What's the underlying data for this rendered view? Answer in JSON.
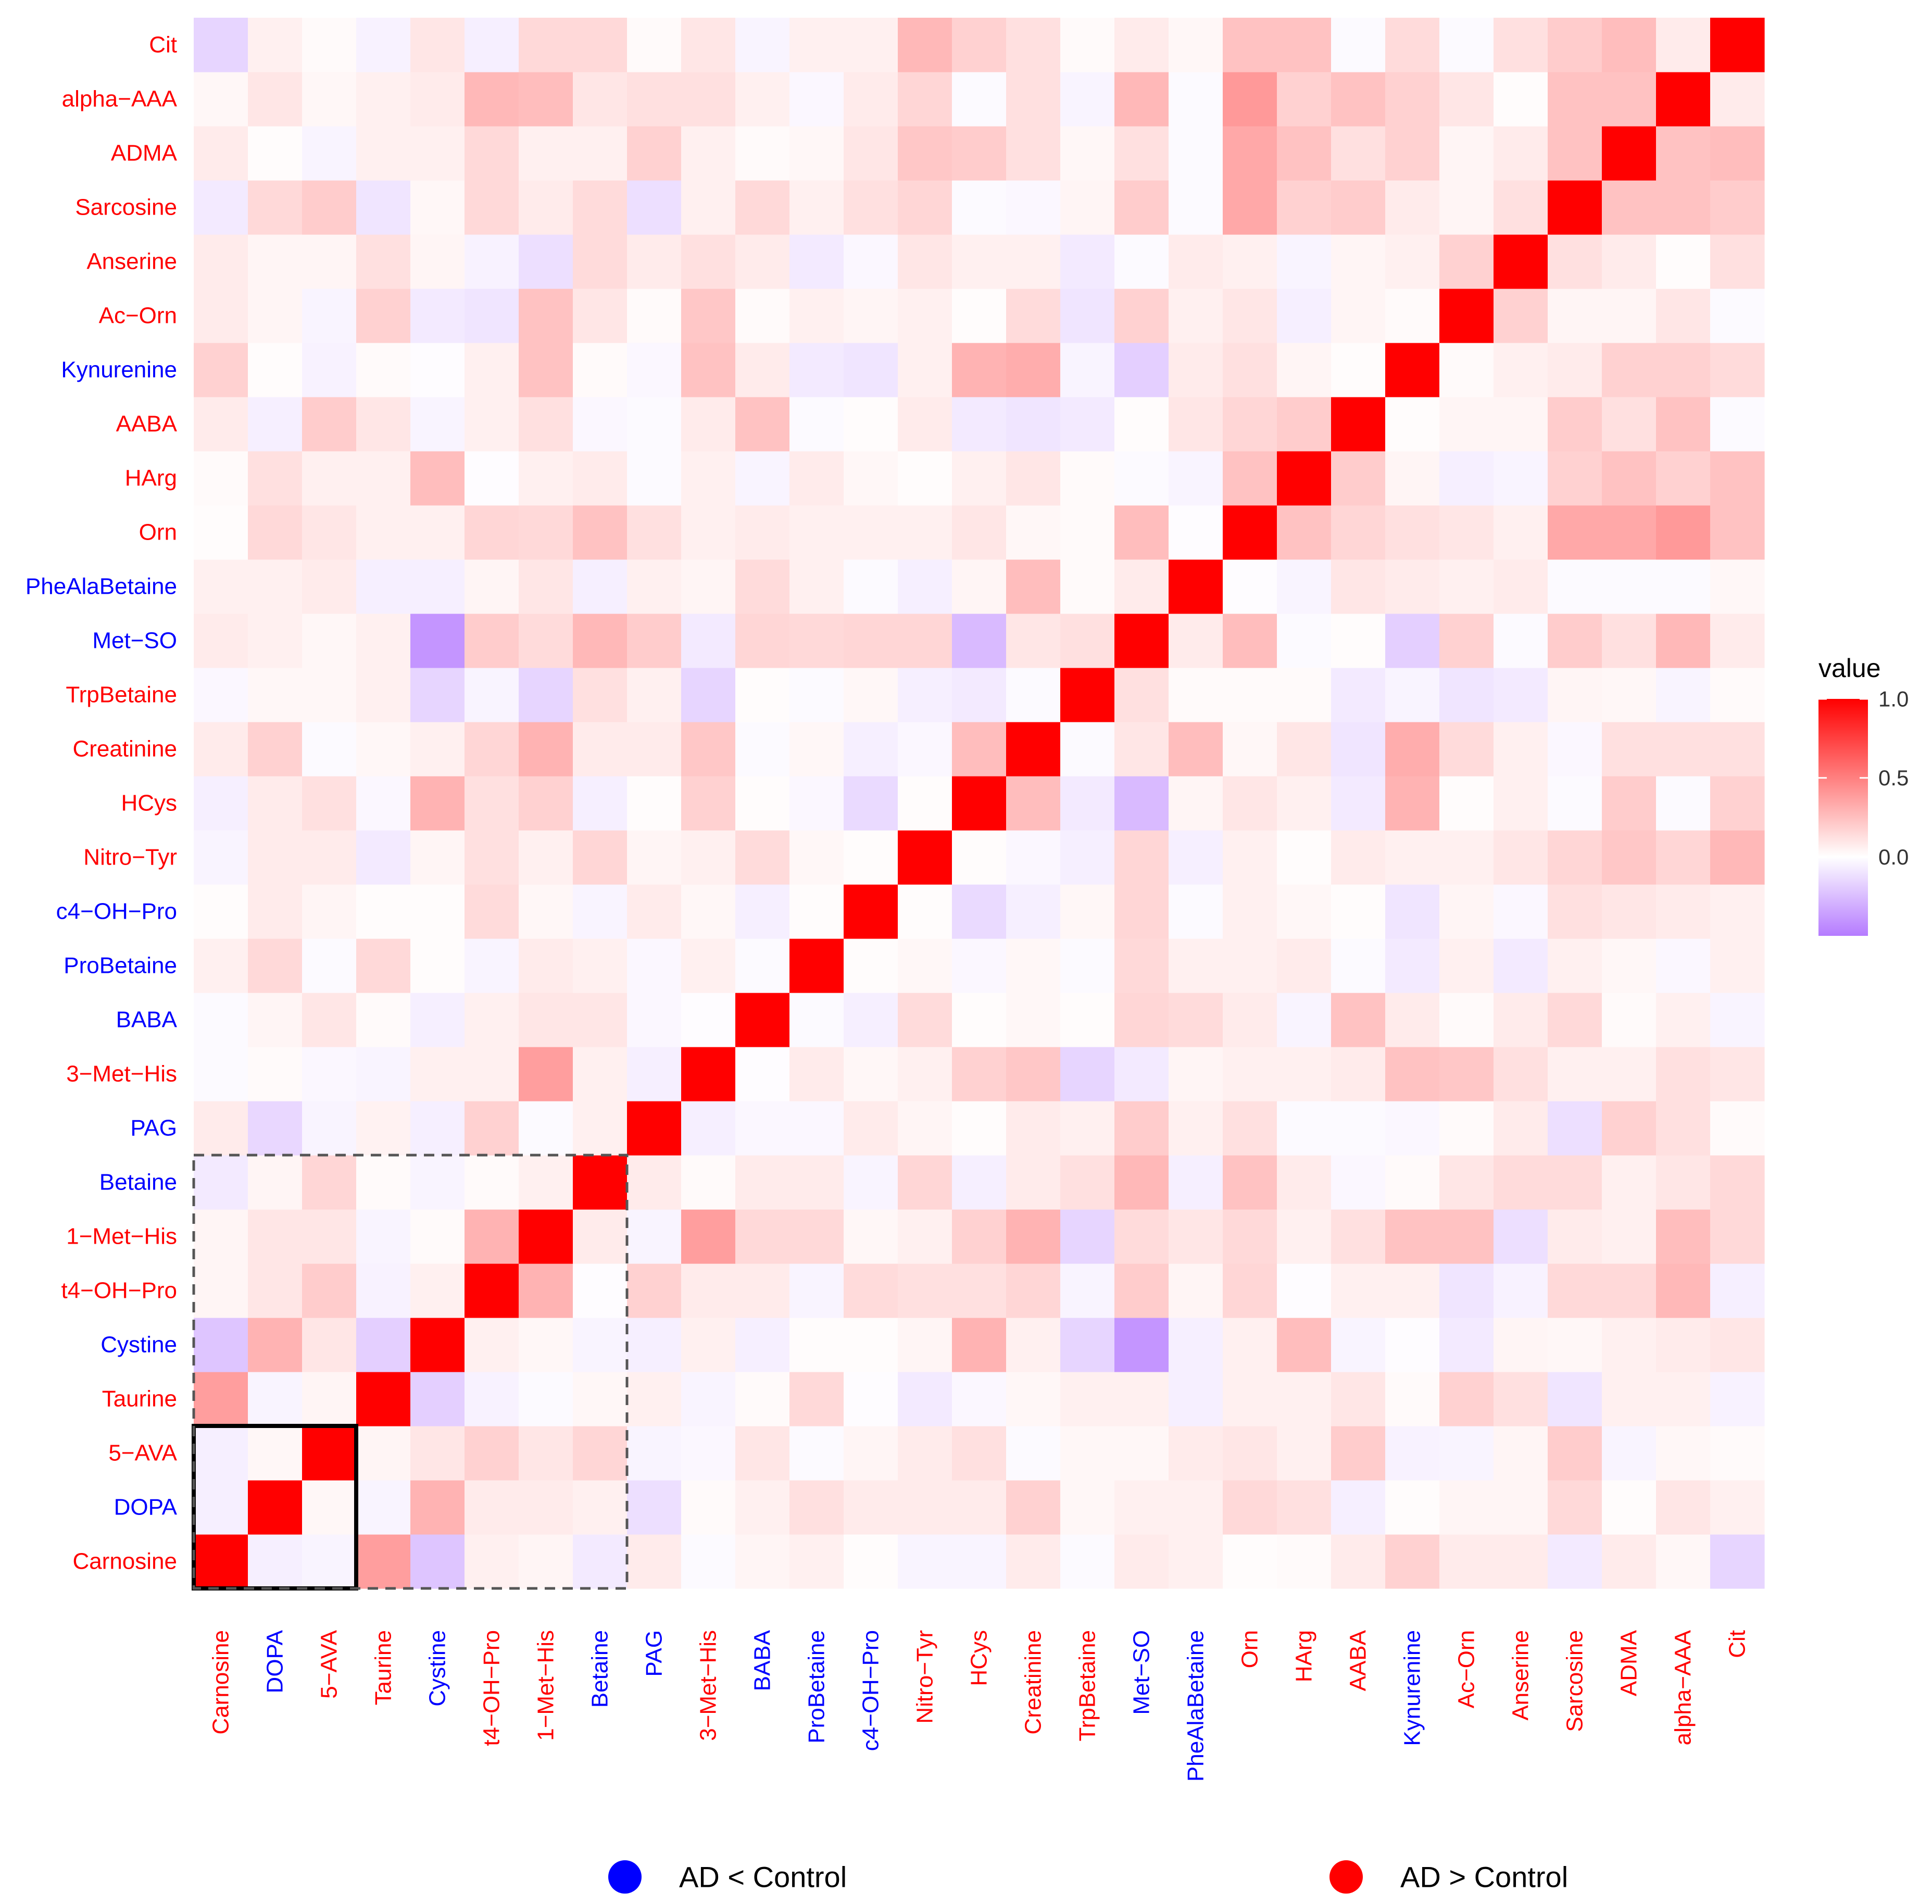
{
  "chart_data": {
    "type": "heatmap",
    "variables": [
      "Carnosine",
      "DOPA",
      "5−AVA",
      "Taurine",
      "Cystine",
      "t4−OH−Pro",
      "1−Met−His",
      "Betaine",
      "PAG",
      "3−Met−His",
      "BABA",
      "ProBetaine",
      "c4−OH−Pro",
      "Nitro−Tyr",
      "HCys",
      "Creatinine",
      "TrpBetaine",
      "Met−SO",
      "PheAlaBetaine",
      "Orn",
      "HArg",
      "AABA",
      "Kynurenine",
      "Ac−Orn",
      "Anserine",
      "Sarcosine",
      "ADMA",
      "alpha−AAA",
      "Cit"
    ],
    "variable_groups": [
      "up",
      "down",
      "up",
      "up",
      "down",
      "up",
      "up",
      "down",
      "down",
      "up",
      "down",
      "down",
      "down",
      "up",
      "up",
      "up",
      "up",
      "down",
      "down",
      "up",
      "up",
      "up",
      "down",
      "up",
      "up",
      "up",
      "up",
      "up",
      "up"
    ],
    "matrix": [
      [
        1.0,
        -0.06,
        -0.04,
        0.38,
        -0.22,
        0.06,
        0.04,
        -0.08,
        0.08,
        -0.02,
        0.04,
        0.06,
        0.01,
        -0.04,
        -0.04,
        0.08,
        -0.02,
        0.08,
        0.06,
        0.01,
        0.02,
        0.08,
        0.18,
        0.08,
        0.08,
        -0.08,
        0.08,
        0.03,
        -0.16
      ],
      [
        -0.06,
        1.0,
        0.03,
        -0.04,
        0.3,
        0.08,
        0.08,
        0.06,
        -0.12,
        0.02,
        0.06,
        0.12,
        0.08,
        0.08,
        0.08,
        0.18,
        0.03,
        0.06,
        0.06,
        0.15,
        0.12,
        -0.06,
        0.01,
        0.04,
        0.04,
        0.15,
        0.01,
        0.1,
        0.06
      ],
      [
        -0.06,
        0.03,
        1.0,
        0.04,
        0.1,
        0.18,
        0.1,
        0.16,
        -0.04,
        -0.03,
        0.1,
        -0.02,
        0.04,
        0.08,
        0.12,
        -0.02,
        0.03,
        0.03,
        0.08,
        0.1,
        0.06,
        0.2,
        -0.05,
        -0.04,
        0.04,
        0.2,
        -0.04,
        0.03,
        0.02
      ],
      [
        0.38,
        -0.04,
        0.04,
        1.0,
        -0.18,
        -0.05,
        -0.02,
        0.03,
        0.06,
        -0.04,
        0.02,
        0.15,
        -0.01,
        -0.08,
        -0.03,
        0.03,
        0.06,
        0.06,
        -0.06,
        0.06,
        0.06,
        0.1,
        0.02,
        0.18,
        0.12,
        -0.1,
        0.06,
        0.06,
        -0.05
      ],
      [
        -0.22,
        0.3,
        0.1,
        -0.18,
        1.0,
        0.06,
        0.03,
        -0.04,
        -0.06,
        0.06,
        -0.06,
        0.01,
        0.01,
        0.04,
        0.3,
        0.06,
        -0.16,
        -0.4,
        -0.06,
        0.06,
        0.26,
        -0.04,
        -0.01,
        -0.08,
        0.04,
        0.03,
        0.06,
        0.08,
        0.1
      ],
      [
        0.04,
        0.1,
        0.2,
        -0.05,
        0.06,
        1.0,
        0.3,
        -0.01,
        0.18,
        0.08,
        0.08,
        -0.04,
        0.14,
        0.12,
        0.12,
        0.16,
        -0.04,
        0.2,
        0.04,
        0.16,
        -0.01,
        0.06,
        0.06,
        -0.1,
        -0.05,
        0.15,
        0.15,
        0.28,
        -0.06
      ],
      [
        0.04,
        0.1,
        0.1,
        -0.04,
        0.02,
        0.3,
        1.0,
        0.08,
        -0.04,
        0.38,
        0.15,
        0.15,
        0.03,
        0.06,
        0.18,
        0.3,
        -0.16,
        0.14,
        0.1,
        0.15,
        0.06,
        0.12,
        0.24,
        0.24,
        -0.12,
        0.08,
        0.06,
        0.26,
        0.15
      ],
      [
        -0.08,
        0.04,
        0.16,
        0.02,
        -0.04,
        0.02,
        0.06,
        1.0,
        0.08,
        0.02,
        0.08,
        0.08,
        -0.04,
        0.16,
        -0.06,
        0.08,
        0.12,
        0.28,
        -0.06,
        0.24,
        0.08,
        -0.03,
        0.02,
        0.1,
        0.14,
        0.14,
        0.06,
        0.1,
        0.15
      ],
      [
        0.08,
        -0.15,
        -0.04,
        0.05,
        -0.06,
        0.18,
        -0.02,
        0.06,
        1.0,
        -0.06,
        -0.03,
        -0.03,
        0.08,
        0.04,
        0.01,
        0.08,
        0.06,
        0.2,
        0.06,
        0.12,
        -0.02,
        -0.02,
        -0.03,
        0.02,
        0.08,
        -0.12,
        0.18,
        0.12,
        0.02
      ],
      [
        -0.02,
        0.02,
        -0.03,
        -0.04,
        0.06,
        0.06,
        0.38,
        0.06,
        -0.06,
        1.0,
        -0.01,
        0.08,
        0.03,
        0.06,
        0.18,
        0.22,
        -0.16,
        -0.08,
        0.04,
        0.06,
        0.06,
        0.08,
        0.24,
        0.22,
        0.12,
        0.06,
        0.06,
        0.12,
        0.1
      ],
      [
        -0.02,
        0.04,
        0.1,
        0.02,
        -0.06,
        0.06,
        0.1,
        0.1,
        -0.03,
        -0.01,
        1.0,
        -0.02,
        -0.06,
        0.14,
        0.01,
        0.03,
        0.01,
        0.16,
        0.14,
        0.08,
        -0.04,
        0.24,
        0.08,
        0.02,
        0.08,
        0.15,
        0.02,
        0.06,
        -0.04
      ],
      [
        0.06,
        0.15,
        -0.02,
        0.15,
        0.01,
        -0.04,
        0.08,
        0.06,
        -0.03,
        0.06,
        -0.02,
        1.0,
        0.01,
        0.03,
        -0.03,
        0.03,
        -0.02,
        0.15,
        0.06,
        0.06,
        0.08,
        -0.02,
        -0.08,
        0.06,
        -0.08,
        0.06,
        0.03,
        -0.03,
        0.06
      ],
      [
        0.01,
        0.08,
        0.04,
        0.01,
        0.01,
        0.14,
        0.03,
        -0.04,
        0.08,
        0.03,
        -0.06,
        0.01,
        1.0,
        0.01,
        -0.14,
        -0.06,
        0.03,
        0.16,
        -0.02,
        0.06,
        0.03,
        0.01,
        -0.1,
        0.04,
        -0.03,
        0.12,
        0.1,
        0.08,
        0.06
      ],
      [
        -0.04,
        0.08,
        0.08,
        -0.08,
        0.04,
        0.12,
        0.06,
        0.16,
        0.04,
        0.06,
        0.14,
        0.03,
        0.01,
        1.0,
        0.01,
        -0.03,
        -0.06,
        0.16,
        -0.06,
        0.06,
        0.01,
        0.08,
        0.06,
        0.06,
        0.1,
        0.16,
        0.22,
        0.16,
        0.28
      ],
      [
        -0.06,
        0.08,
        0.12,
        -0.03,
        0.3,
        0.12,
        0.18,
        -0.06,
        0.01,
        0.18,
        0.01,
        -0.03,
        -0.14,
        0.01,
        1.0,
        0.26,
        -0.08,
        -0.26,
        0.04,
        0.1,
        0.06,
        -0.08,
        0.3,
        0.01,
        0.06,
        -0.02,
        0.2,
        -0.02,
        0.18
      ],
      [
        0.08,
        0.18,
        -0.02,
        0.03,
        0.06,
        0.16,
        0.3,
        0.08,
        0.08,
        0.22,
        -0.02,
        0.03,
        -0.06,
        -0.03,
        0.26,
        1.0,
        -0.02,
        0.1,
        0.26,
        0.03,
        0.1,
        -0.1,
        0.32,
        0.14,
        0.06,
        -0.03,
        0.12,
        0.12,
        0.12
      ],
      [
        -0.03,
        0.03,
        0.03,
        0.06,
        -0.16,
        -0.04,
        -0.16,
        0.12,
        0.06,
        -0.16,
        0.01,
        -0.02,
        0.03,
        -0.06,
        -0.08,
        -0.02,
        1.0,
        0.12,
        0.02,
        0.02,
        0.02,
        -0.08,
        -0.04,
        -0.1,
        -0.08,
        0.04,
        0.03,
        -0.04,
        0.02
      ],
      [
        0.08,
        0.06,
        0.03,
        0.06,
        -0.4,
        0.2,
        0.14,
        0.28,
        0.2,
        -0.08,
        0.16,
        0.15,
        0.16,
        0.16,
        -0.26,
        0.1,
        0.12,
        1.0,
        0.08,
        0.26,
        -0.02,
        0.01,
        -0.18,
        0.18,
        -0.02,
        0.2,
        0.12,
        0.28,
        0.08
      ],
      [
        0.06,
        0.06,
        0.08,
        -0.06,
        -0.06,
        0.04,
        0.1,
        -0.06,
        0.06,
        0.04,
        0.14,
        0.06,
        -0.02,
        -0.06,
        0.04,
        0.26,
        0.02,
        0.08,
        1.0,
        -0.01,
        -0.04,
        0.1,
        0.08,
        0.06,
        0.08,
        -0.02,
        -0.02,
        -0.02,
        0.03
      ],
      [
        0.01,
        0.15,
        0.1,
        0.06,
        0.06,
        0.16,
        0.15,
        0.24,
        0.12,
        0.06,
        0.08,
        0.06,
        0.06,
        0.06,
        0.1,
        0.03,
        0.02,
        0.26,
        -0.01,
        1.0,
        0.24,
        0.16,
        0.12,
        0.1,
        0.06,
        0.34,
        0.34,
        0.4,
        0.24
      ],
      [
        0.02,
        0.12,
        0.06,
        0.06,
        0.26,
        -0.01,
        0.06,
        0.08,
        -0.02,
        0.06,
        -0.04,
        0.08,
        0.03,
        0.01,
        0.06,
        0.1,
        0.02,
        -0.02,
        -0.04,
        0.24,
        1.0,
        0.2,
        0.04,
        -0.06,
        -0.04,
        0.18,
        0.24,
        0.18,
        0.24
      ],
      [
        0.08,
        -0.06,
        0.2,
        0.1,
        -0.04,
        0.06,
        0.12,
        -0.03,
        -0.02,
        0.08,
        0.24,
        -0.02,
        0.01,
        0.08,
        -0.08,
        -0.1,
        -0.08,
        0.01,
        0.1,
        0.16,
        0.2,
        1.0,
        0.01,
        0.04,
        0.04,
        0.2,
        0.12,
        0.24,
        -0.02
      ],
      [
        0.18,
        0.01,
        -0.05,
        0.02,
        -0.01,
        0.06,
        0.24,
        0.02,
        -0.03,
        0.24,
        0.08,
        -0.08,
        -0.1,
        0.06,
        0.3,
        0.32,
        -0.04,
        -0.18,
        0.08,
        0.12,
        0.04,
        0.01,
        1.0,
        0.02,
        0.06,
        0.08,
        0.18,
        0.18,
        0.14
      ],
      [
        0.08,
        0.04,
        -0.04,
        0.18,
        -0.08,
        -0.1,
        0.24,
        0.1,
        0.02,
        0.22,
        0.02,
        0.06,
        0.04,
        0.06,
        0.01,
        0.14,
        -0.1,
        0.18,
        0.06,
        0.1,
        -0.06,
        0.04,
        0.02,
        1.0,
        0.18,
        0.04,
        0.04,
        0.1,
        -0.02
      ],
      [
        0.08,
        0.04,
        0.04,
        0.12,
        0.04,
        -0.05,
        -0.12,
        0.14,
        0.08,
        0.12,
        0.08,
        -0.08,
        -0.03,
        0.1,
        0.06,
        0.06,
        -0.08,
        -0.02,
        0.08,
        0.06,
        -0.04,
        0.04,
        0.06,
        0.18,
        1.0,
        0.12,
        0.08,
        0.01,
        0.12
      ],
      [
        -0.08,
        0.15,
        0.2,
        -0.1,
        0.03,
        0.15,
        0.08,
        0.14,
        -0.12,
        0.06,
        0.15,
        0.06,
        0.12,
        0.16,
        -0.02,
        -0.03,
        0.04,
        0.2,
        -0.02,
        0.34,
        0.18,
        0.2,
        0.08,
        0.04,
        0.12,
        1.0,
        0.24,
        0.24,
        0.2
      ],
      [
        0.08,
        0.01,
        -0.04,
        0.06,
        0.06,
        0.15,
        0.06,
        0.06,
        0.18,
        0.06,
        0.02,
        0.03,
        0.1,
        0.22,
        0.2,
        0.12,
        0.03,
        0.12,
        -0.02,
        0.34,
        0.24,
        0.12,
        0.18,
        0.04,
        0.08,
        0.24,
        1.0,
        0.24,
        0.26
      ],
      [
        0.03,
        0.1,
        0.03,
        0.06,
        0.08,
        0.28,
        0.26,
        0.1,
        0.12,
        0.12,
        0.06,
        -0.03,
        0.08,
        0.16,
        -0.02,
        0.12,
        -0.04,
        0.28,
        -0.02,
        0.4,
        0.18,
        0.24,
        0.18,
        0.1,
        0.01,
        0.24,
        0.24,
        1.0,
        0.08
      ],
      [
        -0.16,
        0.06,
        0.02,
        -0.05,
        0.1,
        -0.06,
        0.15,
        0.15,
        0.02,
        0.1,
        -0.04,
        0.06,
        0.06,
        0.28,
        0.18,
        0.12,
        0.02,
        0.08,
        0.03,
        0.24,
        0.24,
        -0.02,
        0.14,
        -0.02,
        0.12,
        0.2,
        0.26,
        0.08,
        1.0
      ]
    ],
    "legend_title": "value",
    "color_scale": {
      "min": -0.5,
      "mid": 0.0,
      "max": 1.0,
      "low_color": "#b57bff",
      "mid_color": "#ffffff",
      "high_color": "#ff0000"
    },
    "legend_ticks": [
      "1.0",
      "0.5",
      "0.0"
    ],
    "legend_tick_values": [
      1.0,
      0.5,
      0.0
    ],
    "highlight_boxes": [
      {
        "style": "solid",
        "from": "Carnosine",
        "to": "5−AVA"
      },
      {
        "style": "dashed",
        "from": "Carnosine",
        "to": "Betaine"
      }
    ],
    "group_key": [
      {
        "group": "down",
        "label": "AD < Control",
        "color": "#0000ff"
      },
      {
        "group": "up",
        "label": "AD > Control",
        "color": "#ff0000"
      }
    ],
    "group_colors": {
      "up": "#ff0000",
      "down": "#0000ff"
    }
  }
}
